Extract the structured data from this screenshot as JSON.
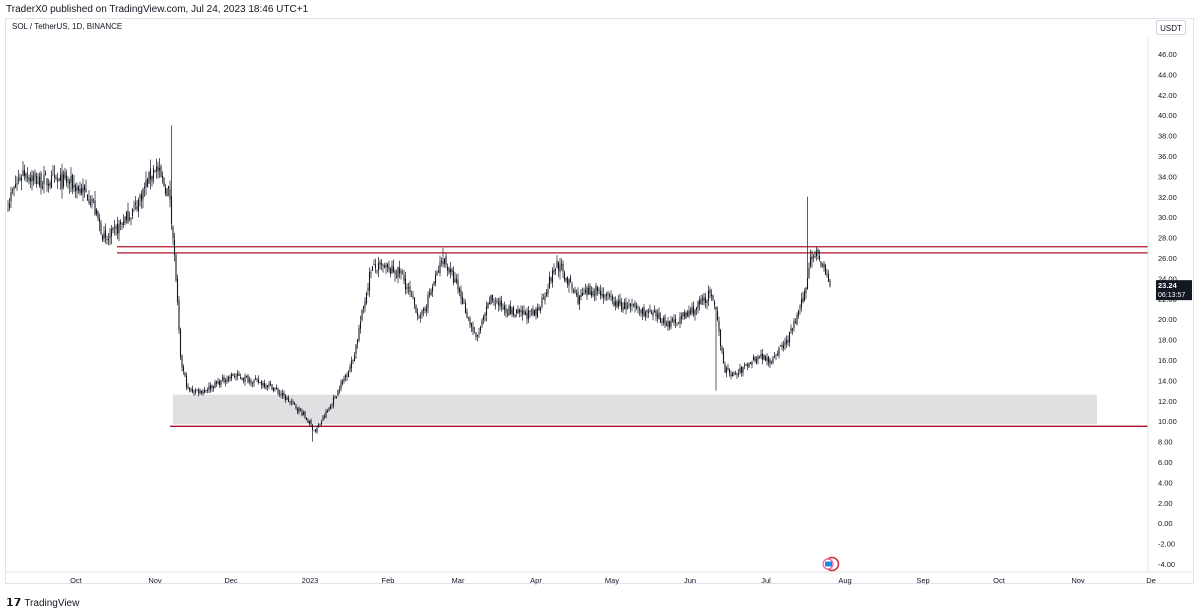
{
  "header": {
    "published_text": "TraderX0 published on TradingView.com, Jul 24, 2023 18:46 UTC+1",
    "symbol_text": "SOL / TetherUS, 1D, BINANCE",
    "currency": "USDT"
  },
  "footer": {
    "logo_glyph": "𝟭𝟳",
    "brand": "TradingView"
  },
  "colors": {
    "candle": "#131722",
    "resistance_line": "#b2102a",
    "support_zone": "#e0e0e3",
    "price_label_bg": "#131722",
    "price_label_text": "#ffffff"
  },
  "chart_data": {
    "type": "candlestick",
    "y_scale": "linear",
    "ylim": [
      -5,
      47
    ],
    "y_ticks": [
      "46.00",
      "44.00",
      "42.00",
      "40.00",
      "38.00",
      "36.00",
      "34.00",
      "32.00",
      "30.00",
      "28.00",
      "26.00",
      "24.00",
      "22.00",
      "20.00",
      "18.00",
      "16.00",
      "14.00",
      "12.00",
      "10.00",
      "8.00",
      "6.00",
      "4.00",
      "2.00",
      "0.00",
      "-2.00",
      "-4.00"
    ],
    "x_ticks": [
      "Oct",
      "Nov",
      "Dec",
      "2023",
      "Feb",
      "Mar",
      "Apr",
      "May",
      "Jun",
      "Jul",
      "Aug",
      "Sep",
      "Oct",
      "Nov",
      "De"
    ],
    "grid": false,
    "current_price": {
      "price": "23.24",
      "countdown": "06:13:57"
    },
    "resistance_lines": [
      27.1,
      26.5
    ],
    "support_line": 9.5,
    "support_zone": [
      9.7,
      12.6
    ],
    "anchors": [
      [
        0,
        31.5
      ],
      [
        10,
        34.5
      ],
      [
        20,
        33.5
      ],
      [
        40,
        33.5
      ],
      [
        55,
        32.0
      ],
      [
        65,
        27.5
      ],
      [
        85,
        31.0
      ],
      [
        98,
        35.0
      ],
      [
        108,
        32.0
      ],
      [
        112,
        24.0
      ],
      [
        115,
        16.0
      ],
      [
        120,
        13.0
      ],
      [
        130,
        13.0
      ],
      [
        150,
        14.5
      ],
      [
        175,
        13.5
      ],
      [
        195,
        11.0
      ],
      [
        205,
        9.0
      ],
      [
        215,
        11.5
      ],
      [
        230,
        16.0
      ],
      [
        238,
        22.0
      ],
      [
        242,
        25.0
      ],
      [
        250,
        25.0
      ],
      [
        262,
        24.5
      ],
      [
        275,
        20.0
      ],
      [
        290,
        26.0
      ],
      [
        300,
        23.0
      ],
      [
        312,
        18.0
      ],
      [
        322,
        22.0
      ],
      [
        338,
        20.5
      ],
      [
        352,
        20.5
      ],
      [
        366,
        25.5
      ],
      [
        380,
        22.0
      ],
      [
        392,
        23.0
      ],
      [
        405,
        21.5
      ],
      [
        420,
        21.0
      ],
      [
        442,
        19.5
      ],
      [
        458,
        21.0
      ],
      [
        468,
        22.5
      ],
      [
        472,
        20.5
      ],
      [
        478,
        15.0
      ],
      [
        485,
        14.5
      ],
      [
        500,
        16.5
      ],
      [
        508,
        16.0
      ],
      [
        520,
        18.0
      ],
      [
        528,
        21.0
      ],
      [
        532,
        23.0
      ],
      [
        535,
        26.5
      ],
      [
        540,
        26.5
      ],
      [
        545,
        24.5
      ],
      [
        548,
        23.24
      ]
    ],
    "spikes": [
      {
        "i": 63,
        "high": 28.0
      },
      {
        "i": 109,
        "high": 39.0
      },
      {
        "i": 203,
        "low": 8.0
      },
      {
        "i": 290,
        "high": 27.0
      },
      {
        "i": 368,
        "high": 26.0
      },
      {
        "i": 472,
        "low": 13.0
      },
      {
        "i": 533,
        "high": 32.0
      }
    ],
    "n_candles": 549
  }
}
